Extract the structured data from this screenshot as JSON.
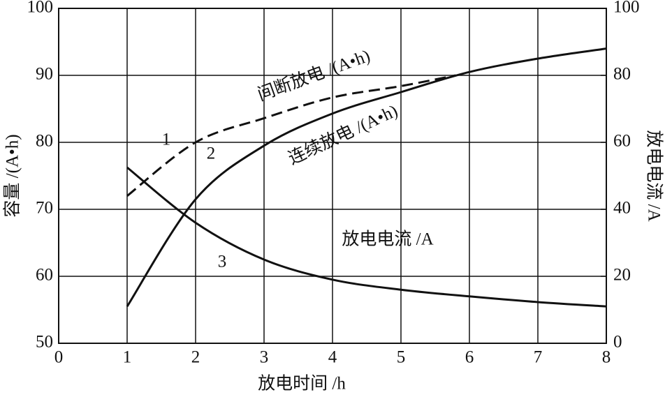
{
  "chart_data": {
    "type": "line",
    "x_label": "放电时间 /h",
    "y_label": "容量 /(A•h)",
    "y2_label": "放电电流 /A",
    "xlim": [
      0,
      8
    ],
    "xticks": [
      0,
      1,
      2,
      3,
      4,
      5,
      6,
      7,
      8
    ],
    "ylim": [
      50,
      100
    ],
    "yticks": [
      50,
      60,
      70,
      80,
      90,
      100
    ],
    "y2lim": [
      0,
      100
    ],
    "y2ticks": [
      0,
      20,
      40,
      60,
      80,
      100
    ],
    "grid": true,
    "series": [
      {
        "name": "间断放电 /(A•h)",
        "label": "1",
        "color": "#111111",
        "style": "dashed",
        "x": [
          1,
          2,
          3,
          4,
          5,
          5.8
        ],
        "values": [
          72,
          80,
          83.6,
          86.7,
          88.4,
          90
        ]
      },
      {
        "name": "连续放电 /(A•h)",
        "label": "2",
        "color": "#111111",
        "style": "solid",
        "x": [
          1,
          2,
          3,
          4,
          5,
          6,
          7,
          8
        ],
        "values": [
          55.5,
          71.5,
          79.5,
          84.3,
          87.5,
          90.5,
          92.5,
          94
        ]
      },
      {
        "name": "放电电流 /A",
        "label": "3",
        "color": "#111111",
        "style": "solid",
        "axis": "y2",
        "x": [
          1,
          2,
          3,
          4,
          5,
          6,
          7,
          8
        ],
        "values": [
          52.5,
          36,
          25,
          19,
          16,
          14,
          12.3,
          11
        ]
      }
    ]
  }
}
